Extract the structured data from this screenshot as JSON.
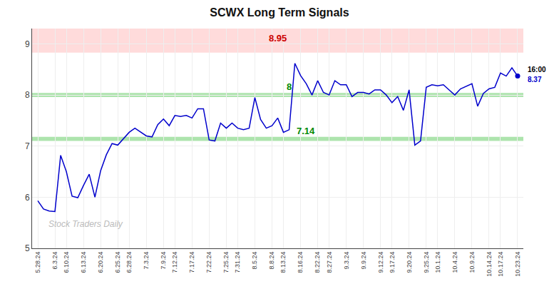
{
  "chart_data": {
    "type": "line",
    "title": "SCWX Long Term Signals",
    "categories": [
      "5.28.24",
      null,
      null,
      "6.3.24",
      null,
      "6.10.24",
      null,
      null,
      "6.13.24",
      null,
      null,
      "6.20.24",
      null,
      null,
      "6.25.24",
      null,
      "6.28.24",
      null,
      null,
      "7.3.24",
      null,
      null,
      "7.9.24",
      null,
      "7.12.24",
      null,
      null,
      "7.17.24",
      null,
      null,
      "7.22.24",
      null,
      null,
      "7.25.24",
      null,
      "7.31.24",
      null,
      null,
      "8.5.24",
      null,
      null,
      "8.8.24",
      null,
      "8.13.24",
      null,
      null,
      "8.16.24",
      null,
      null,
      "8.22.24",
      null,
      "8.27.24",
      null,
      null,
      "9.3.24",
      null,
      null,
      "9.9.24",
      null,
      null,
      "9.12.24",
      null,
      "9.17.24",
      null,
      null,
      "9.20.24",
      null,
      null,
      "9.25.24",
      null,
      "10.1.24",
      null,
      null,
      "10.4.24",
      null,
      null,
      "10.9.24",
      null,
      null,
      "10.14.24",
      null,
      "10.17.24",
      null,
      null,
      "10.23.24"
    ],
    "values": [
      5.93,
      5.77,
      5.73,
      5.72,
      6.82,
      6.5,
      6.02,
      5.99,
      6.23,
      6.45,
      6.0,
      6.52,
      6.83,
      7.05,
      7.02,
      7.15,
      7.27,
      7.35,
      7.27,
      7.2,
      7.18,
      7.42,
      7.53,
      7.4,
      7.6,
      7.58,
      7.6,
      7.55,
      7.73,
      7.73,
      7.12,
      7.1,
      7.45,
      7.35,
      7.45,
      7.35,
      7.32,
      7.35,
      7.95,
      7.52,
      7.35,
      7.4,
      7.55,
      7.27,
      7.32,
      8.62,
      8.38,
      8.22,
      8.0,
      8.28,
      8.05,
      8.0,
      8.28,
      8.2,
      8.2,
      7.97,
      8.05,
      8.05,
      8.02,
      8.1,
      8.1,
      8.0,
      7.85,
      7.97,
      7.7,
      8.1,
      7.02,
      7.1,
      8.15,
      8.2,
      8.18,
      8.2,
      8.1,
      8.0,
      8.12,
      8.17,
      8.22,
      7.78,
      8.03,
      8.12,
      8.15,
      8.43,
      8.37,
      8.53,
      8.37
    ],
    "color": "#0000cc",
    "marker": "circle",
    "ylim": [
      5,
      9.3
    ],
    "yticks": [
      5,
      6,
      7,
      8,
      9
    ],
    "grid": true,
    "bands": [
      {
        "from": 8.83,
        "to": 9.3,
        "color": "#ffcccc"
      },
      {
        "from": 7.96,
        "to": 8.04,
        "color": "#99dd99"
      },
      {
        "from": 7.1,
        "to": 7.18,
        "color": "#99dd99"
      }
    ],
    "annotations": [
      {
        "text": "8.95",
        "y": 8.95,
        "color": "#cc0000"
      },
      {
        "text": "8",
        "y": 8.0,
        "color": "#008800"
      },
      {
        "text": "7.14",
        "y": 7.14,
        "color": "#008800"
      }
    ],
    "last_labels": [
      {
        "text": "16:00",
        "color": "#000000"
      },
      {
        "text": "8.37",
        "color": "#0000cc"
      }
    ],
    "watermark": {
      "text": "Stock Traders Daily",
      "color": "#bbbbbb"
    }
  }
}
